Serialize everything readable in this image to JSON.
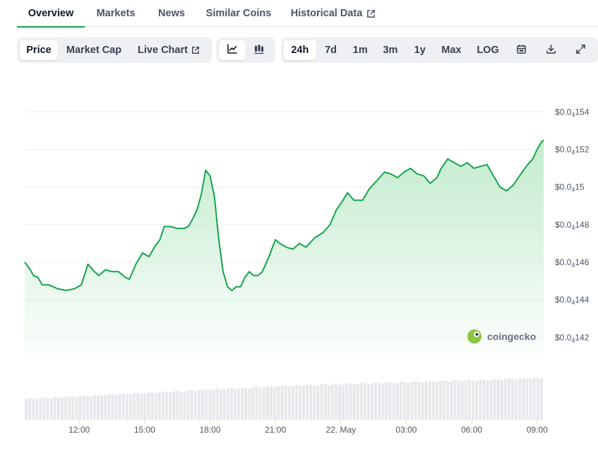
{
  "tabs": [
    {
      "label": "Overview",
      "active": true
    },
    {
      "label": "Markets"
    },
    {
      "label": "News"
    },
    {
      "label": "Similar Coins"
    },
    {
      "label": "Historical Data",
      "external": true
    }
  ],
  "chart_type_group": [
    {
      "label": "Price",
      "active": true
    },
    {
      "label": "Market Cap"
    },
    {
      "label": "Live Chart",
      "external": true
    }
  ],
  "chart_style_group": [
    {
      "icon": "line-chart-icon",
      "active": true
    },
    {
      "icon": "candlestick-chart-icon"
    }
  ],
  "range_group": [
    {
      "label": "24h",
      "active": true
    },
    {
      "label": "7d"
    },
    {
      "label": "1m"
    },
    {
      "label": "3m"
    },
    {
      "label": "1y"
    },
    {
      "label": "Max"
    },
    {
      "label": "LOG"
    }
  ],
  "tool_icons": [
    "calendar-icon",
    "download-icon",
    "fullscreen-icon"
  ],
  "watermark": "coingecko",
  "colors": {
    "line": "#16a34a",
    "area_top": "#bfeacb",
    "volume": "#e6e8ec",
    "grid": "#eceef1",
    "active_tab": "#16a34a"
  },
  "chart_data": {
    "type": "area",
    "y_axis": {
      "min": 1.41e-05,
      "max": 1.545e-05,
      "ticks": [
        {
          "value": 1.54e-05,
          "prefix": "$0.0",
          "sub": "4",
          "digits": "154"
        },
        {
          "value": 1.52e-05,
          "prefix": "$0.0",
          "sub": "4",
          "digits": "152"
        },
        {
          "value": 1.5e-05,
          "prefix": "$0.0",
          "sub": "4",
          "digits": "15"
        },
        {
          "value": 1.48e-05,
          "prefix": "$0.0",
          "sub": "4",
          "digits": "148"
        },
        {
          "value": 1.46e-05,
          "prefix": "$0.0",
          "sub": "4",
          "digits": "146"
        },
        {
          "value": 1.44e-05,
          "prefix": "$0.0",
          "sub": "4",
          "digits": "144"
        },
        {
          "value": 1.42e-05,
          "prefix": "$0.0",
          "sub": "4",
          "digits": "142"
        }
      ]
    },
    "x_axis": {
      "start_hour": 9.5,
      "end_hour": 33.3,
      "ticks": [
        {
          "label": "12:00",
          "hour": 12
        },
        {
          "label": "15:00",
          "hour": 15
        },
        {
          "label": "18:00",
          "hour": 18
        },
        {
          "label": "21:00",
          "hour": 21
        },
        {
          "label": "22. May",
          "hour": 24
        },
        {
          "label": "03:00",
          "hour": 27
        },
        {
          "label": "06:00",
          "hour": 30
        },
        {
          "label": "09:00",
          "hour": 33
        }
      ]
    },
    "price_series": [
      [
        9.5,
        14.6
      ],
      [
        9.7,
        14.57
      ],
      [
        9.9,
        14.53
      ],
      [
        10.1,
        14.52
      ],
      [
        10.3,
        14.48
      ],
      [
        10.6,
        14.48
      ],
      [
        11.0,
        14.46
      ],
      [
        11.4,
        14.45
      ],
      [
        11.8,
        14.46
      ],
      [
        12.1,
        14.48
      ],
      [
        12.4,
        14.59
      ],
      [
        12.7,
        14.55
      ],
      [
        12.9,
        14.53
      ],
      [
        13.2,
        14.56
      ],
      [
        13.5,
        14.55
      ],
      [
        13.8,
        14.55
      ],
      [
        14.1,
        14.52
      ],
      [
        14.3,
        14.51
      ],
      [
        14.6,
        14.59
      ],
      [
        14.9,
        14.65
      ],
      [
        15.2,
        14.63
      ],
      [
        15.5,
        14.69
      ],
      [
        15.7,
        14.72
      ],
      [
        15.9,
        14.79
      ],
      [
        16.2,
        14.79
      ],
      [
        16.5,
        14.78
      ],
      [
        16.8,
        14.78
      ],
      [
        17.0,
        14.79
      ],
      [
        17.2,
        14.83
      ],
      [
        17.4,
        14.88
      ],
      [
        17.6,
        14.96
      ],
      [
        17.8,
        15.09
      ],
      [
        18.0,
        15.06
      ],
      [
        18.2,
        14.95
      ],
      [
        18.4,
        14.72
      ],
      [
        18.6,
        14.55
      ],
      [
        18.8,
        14.47
      ],
      [
        19.0,
        14.45
      ],
      [
        19.2,
        14.47
      ],
      [
        19.4,
        14.47
      ],
      [
        19.6,
        14.52
      ],
      [
        19.8,
        14.55
      ],
      [
        20.0,
        14.53
      ],
      [
        20.2,
        14.53
      ],
      [
        20.4,
        14.55
      ],
      [
        20.7,
        14.63
      ],
      [
        21.0,
        14.72
      ],
      [
        21.2,
        14.7
      ],
      [
        21.5,
        14.68
      ],
      [
        21.8,
        14.67
      ],
      [
        22.1,
        14.7
      ],
      [
        22.4,
        14.68
      ],
      [
        22.8,
        14.73
      ],
      [
        23.2,
        14.76
      ],
      [
        23.5,
        14.8
      ],
      [
        23.8,
        14.88
      ],
      [
        24.1,
        14.93
      ],
      [
        24.3,
        14.97
      ],
      [
        24.6,
        14.93
      ],
      [
        25.0,
        14.93
      ],
      [
        25.3,
        14.99
      ],
      [
        25.7,
        15.04
      ],
      [
        26.0,
        15.08
      ],
      [
        26.3,
        15.07
      ],
      [
        26.6,
        15.05
      ],
      [
        26.9,
        15.08
      ],
      [
        27.2,
        15.1
      ],
      [
        27.5,
        15.07
      ],
      [
        27.8,
        15.06
      ],
      [
        28.1,
        15.02
      ],
      [
        28.4,
        15.05
      ],
      [
        28.6,
        15.1
      ],
      [
        28.9,
        15.15
      ],
      [
        29.2,
        15.13
      ],
      [
        29.5,
        15.11
      ],
      [
        29.8,
        15.13
      ],
      [
        30.1,
        15.1
      ],
      [
        30.4,
        15.11
      ],
      [
        30.7,
        15.12
      ],
      [
        31.0,
        15.06
      ],
      [
        31.3,
        15.0
      ],
      [
        31.6,
        14.98
      ],
      [
        31.9,
        15.01
      ],
      [
        32.2,
        15.06
      ],
      [
        32.5,
        15.11
      ],
      [
        32.8,
        15.15
      ],
      [
        33.0,
        15.2
      ],
      [
        33.2,
        15.24
      ],
      [
        33.3,
        15.25
      ]
    ],
    "price_scale": 1e-06,
    "volume_trend": {
      "start": 0.4,
      "mid": 0.65,
      "end": 0.8
    }
  }
}
